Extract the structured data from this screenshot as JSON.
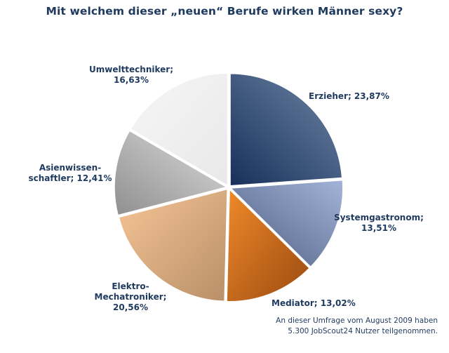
{
  "title": "Mit welchem dieser „neuen“ Berufe wirken Männer sexy?",
  "footnote": [
    "An dieser Umfrage vom August 2009 haben",
    "5.300 JobScout24 Nutzer teilgenommen."
  ],
  "chart_data": {
    "type": "pie",
    "title": "Mit welchem dieser „neuen“ Berufe wirken Männer sexy?",
    "start": "12 o'clock",
    "direction": "clockwise",
    "slices": [
      {
        "name": "Erzieher",
        "value": 23.87,
        "label_lines": [
          "Erzieher; 23,87%"
        ],
        "color_light": "#6f87a6",
        "color_dark": "#17305a"
      },
      {
        "name": "Systemgastronom",
        "value": 13.51,
        "label_lines": [
          "Systemgastronom;",
          "13,51%"
        ],
        "color_light": "#a4b4d8",
        "color_dark": "#4b5c80"
      },
      {
        "name": "Mediator",
        "value": 13.02,
        "label_lines": [
          "Mediator; 13,02%"
        ],
        "color_light": "#f08a2a",
        "color_dark": "#9a4a10"
      },
      {
        "name": "Elektro-Mechatroniker",
        "value": 20.56,
        "label_lines": [
          "Elektro-",
          "Mechatroniker;",
          "20,56%"
        ],
        "color_light": "#f6c596",
        "color_dark": "#b98f68"
      },
      {
        "name": "Asienwissenschaftler",
        "value": 12.41,
        "label_lines": [
          "Asienwissen-",
          "schaftler; 12,41%"
        ],
        "color_light": "#dcdcdc",
        "color_dark": "#8f8f8f"
      },
      {
        "name": "Umwelttechniker",
        "value": 16.63,
        "label_lines": [
          "Umwelttechniker;",
          "16,63%"
        ],
        "color_light": "#f6f6f6",
        "color_dark": "#e8e8e8"
      }
    ]
  }
}
